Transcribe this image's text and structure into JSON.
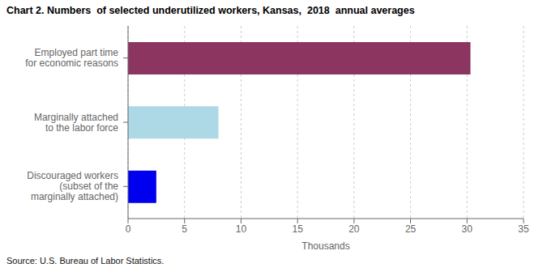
{
  "chart_data": {
    "type": "bar",
    "orientation": "horizontal",
    "title": "Chart 2. Numbers  of selected underutilized workers, Kansas,  2018  annual averages",
    "categories": [
      "Employed part time\nfor economic reasons",
      "Marginally attached\nto the labor force",
      "Discouraged workers\n(subset of the\nmarginally attached)"
    ],
    "values": [
      30.3,
      8.0,
      2.5
    ],
    "colors": [
      "#8B3560",
      "#ADD8E6",
      "#0000EE"
    ],
    "xlabel": "Thousands",
    "xlim": [
      0,
      35
    ],
    "xticks": [
      0,
      5,
      10,
      15,
      20,
      25,
      30,
      35
    ],
    "grid": true,
    "annotations": [
      "Source: U.S. Bureau of Labor Statistics."
    ]
  }
}
